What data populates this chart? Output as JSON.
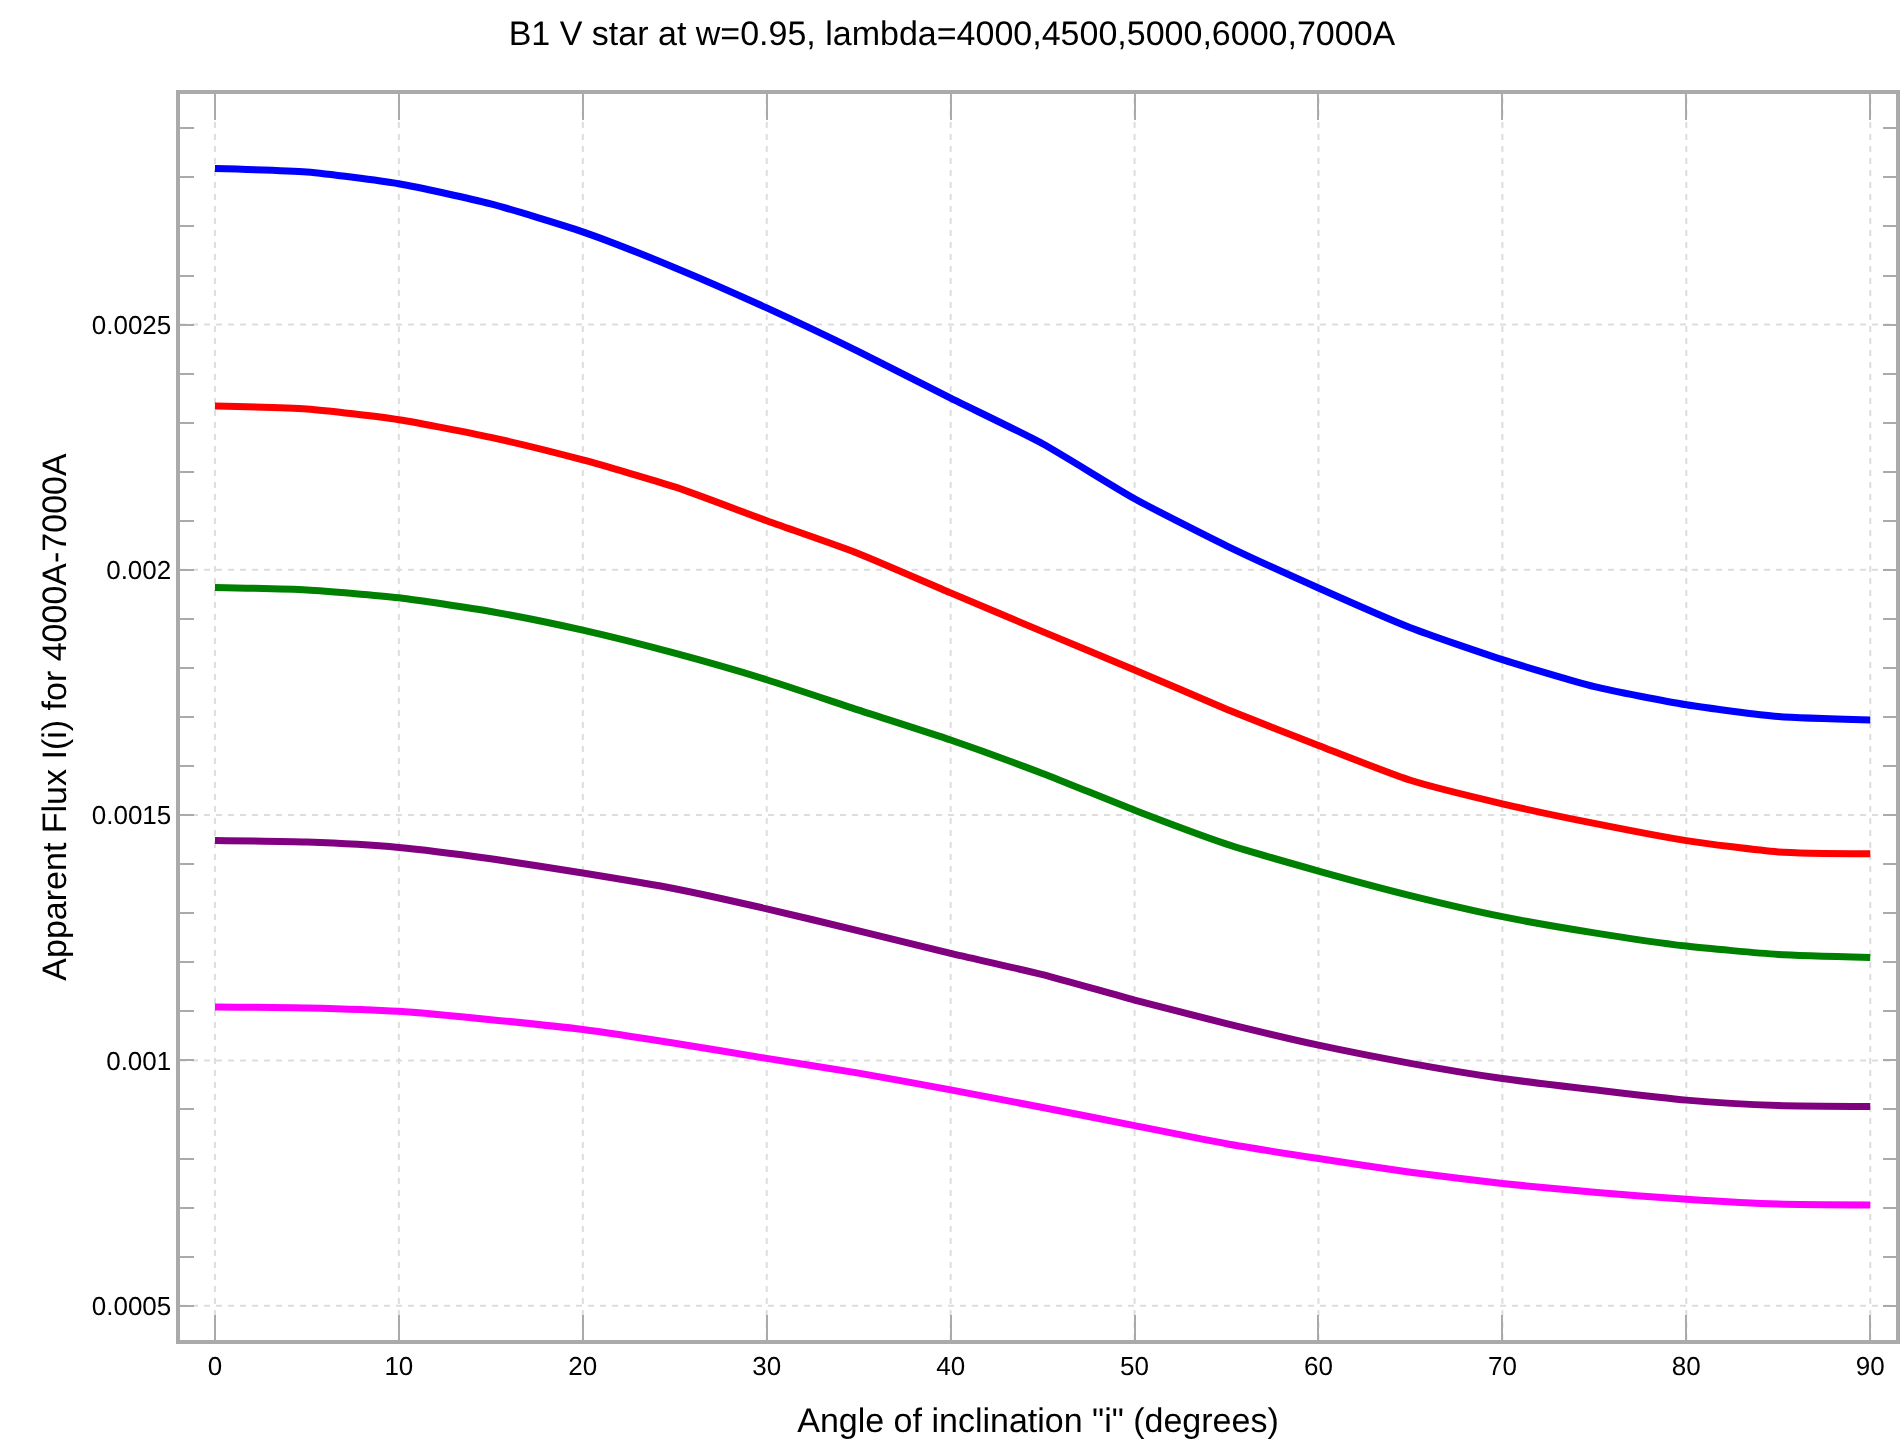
{
  "chart_data": {
    "type": "line",
    "title": "B1 V star at w=0.95, lambda=4000,4500,5000,6000,7000A",
    "xlabel": "Angle of inclination \"i\" (degrees)",
    "ylabel": "Apparent Flux I(i) for 4000A-7000A",
    "x": [
      0,
      5,
      10,
      15,
      20,
      25,
      30,
      35,
      40,
      45,
      50,
      55,
      60,
      65,
      70,
      75,
      80,
      85,
      90
    ],
    "series": [
      {
        "color": "#0000ff",
        "values": [
          0.002818,
          0.002811,
          0.002787,
          0.002746,
          0.002689,
          0.002616,
          0.002534,
          0.002445,
          0.00235,
          0.002257,
          0.002145,
          0.002049,
          0.001963,
          0.001882,
          0.001817,
          0.001762,
          0.001725,
          0.001701,
          0.001694
        ]
      },
      {
        "color": "#ff0000",
        "values": [
          0.002334,
          0.002328,
          0.002306,
          0.00227,
          0.002224,
          0.002169,
          0.0021,
          0.002033,
          0.001953,
          0.001874,
          0.001796,
          0.001716,
          0.001642,
          0.001571,
          0.001523,
          0.001483,
          0.001448,
          0.001425,
          0.001421
        ]
      },
      {
        "color": "#008000",
        "values": [
          0.001964,
          0.001959,
          0.001943,
          0.001915,
          0.001877,
          0.00183,
          0.001776,
          0.001714,
          0.001653,
          0.001585,
          0.00151,
          0.001441,
          0.001386,
          0.001336,
          0.001293,
          0.00126,
          0.001233,
          0.001216,
          0.00121
        ]
      },
      {
        "color": "#800080",
        "values": [
          0.001448,
          0.001445,
          0.001434,
          0.001411,
          0.001382,
          0.00135,
          0.001309,
          0.001264,
          0.001218,
          0.001175,
          0.001123,
          0.001075,
          0.001031,
          0.000994,
          0.000963,
          0.00094,
          0.000919,
          0.000908,
          0.000906
        ]
      },
      {
        "color": "#ff00ff",
        "values": [
          0.001109,
          0.001107,
          0.0011,
          0.001083,
          0.001063,
          0.001035,
          0.001004,
          0.000974,
          0.00094,
          0.000904,
          0.000867,
          0.00083,
          0.0008,
          0.000772,
          0.000749,
          0.000731,
          0.000717,
          0.000707,
          0.000705
        ]
      }
    ],
    "xlim": [
      -1.9,
      91.4
    ],
    "xticks": [
      0,
      10,
      20,
      30,
      40,
      50,
      60,
      70,
      80,
      90
    ],
    "ylim": [
      0.00043,
      0.00297
    ],
    "yticks": [
      0.0005,
      {
        "value": 0.0006,
        "label": null
      },
      {
        "value": 0.0007,
        "label": null
      },
      {
        "value": 0.0008,
        "label": null
      },
      {
        "value": 0.0009,
        "label": null
      },
      0.001,
      {
        "value": 0.0011,
        "label": null
      },
      {
        "value": 0.0012,
        "label": null
      },
      {
        "value": 0.0013,
        "label": null
      },
      {
        "value": 0.0014,
        "label": null
      },
      0.0015,
      {
        "value": 0.0016,
        "label": null
      },
      {
        "value": 0.0017,
        "label": null
      },
      {
        "value": 0.0018,
        "label": null
      },
      {
        "value": 0.0019,
        "label": null
      },
      0.002,
      {
        "value": 0.0021,
        "label": null
      },
      {
        "value": 0.0022,
        "label": null
      },
      {
        "value": 0.0023,
        "label": null
      },
      {
        "value": 0.0024,
        "label": null
      },
      0.0025,
      {
        "value": 0.0026,
        "label": null
      },
      {
        "value": 0.0027,
        "label": null
      },
      {
        "value": 0.0028,
        "label": null
      },
      {
        "value": 0.0029,
        "label": null
      }
    ],
    "grid": true,
    "marker": "none",
    "line_style": "solid"
  }
}
